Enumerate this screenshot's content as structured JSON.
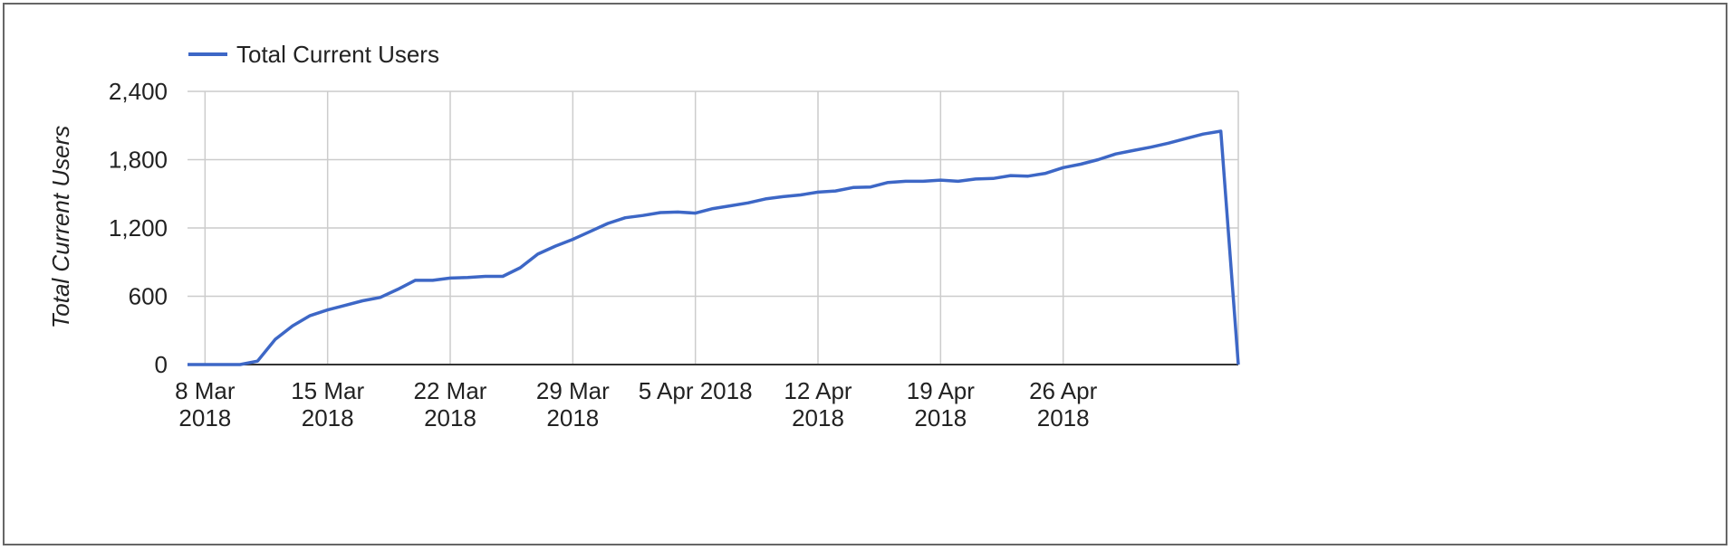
{
  "chart_data": {
    "type": "line",
    "title": "",
    "xlabel": "",
    "ylabel": "Total Current Users",
    "legend": {
      "position": "top-left",
      "entries": [
        "Total Current Users"
      ]
    },
    "grid": true,
    "ylim": [
      0,
      2400
    ],
    "yticks": [
      {
        "value": 0,
        "label": "0"
      },
      {
        "value": 600,
        "label": "600"
      },
      {
        "value": 1200,
        "label": "1,200"
      },
      {
        "value": 1800,
        "label": "1,800"
      },
      {
        "value": 2400,
        "label": "2,400"
      }
    ],
    "xlim": [
      "2018-03-08",
      "2018-05-06"
    ],
    "xticks": [
      {
        "value": "2018-03-08",
        "label": [
          "8 Mar",
          "2018"
        ]
      },
      {
        "value": "2018-03-15",
        "label": [
          "15 Mar",
          "2018"
        ]
      },
      {
        "value": "2018-03-22",
        "label": [
          "22 Mar",
          "2018"
        ]
      },
      {
        "value": "2018-03-29",
        "label": [
          "29 Mar",
          "2018"
        ]
      },
      {
        "value": "2018-04-05",
        "label": [
          "5 Apr 2018"
        ]
      },
      {
        "value": "2018-04-12",
        "label": [
          "12 Apr",
          "2018"
        ]
      },
      {
        "value": "2018-04-19",
        "label": [
          "19 Apr",
          "2018"
        ]
      },
      {
        "value": "2018-04-26",
        "label": [
          "26 Apr",
          "2018"
        ]
      }
    ],
    "series": [
      {
        "name": "Total Current Users",
        "color": "#3d67c6",
        "x": [
          "2018-03-07",
          "2018-03-08",
          "2018-03-09",
          "2018-03-10",
          "2018-03-11",
          "2018-03-12",
          "2018-03-13",
          "2018-03-14",
          "2018-03-15",
          "2018-03-16",
          "2018-03-17",
          "2018-03-18",
          "2018-03-19",
          "2018-03-20",
          "2018-03-21",
          "2018-03-22",
          "2018-03-23",
          "2018-03-24",
          "2018-03-25",
          "2018-03-26",
          "2018-03-27",
          "2018-03-28",
          "2018-03-29",
          "2018-03-30",
          "2018-03-31",
          "2018-04-01",
          "2018-04-02",
          "2018-04-03",
          "2018-04-04",
          "2018-04-05",
          "2018-04-06",
          "2018-04-07",
          "2018-04-08",
          "2018-04-09",
          "2018-04-10",
          "2018-04-11",
          "2018-04-12",
          "2018-04-13",
          "2018-04-14",
          "2018-04-15",
          "2018-04-16",
          "2018-04-17",
          "2018-04-18",
          "2018-04-19",
          "2018-04-20",
          "2018-04-21",
          "2018-04-22",
          "2018-04-23",
          "2018-04-24",
          "2018-04-25",
          "2018-04-26",
          "2018-04-27",
          "2018-04-28",
          "2018-04-29",
          "2018-04-30",
          "2018-05-01",
          "2018-05-02",
          "2018-05-03",
          "2018-05-04",
          "2018-05-05",
          "2018-05-06"
        ],
        "y": [
          0,
          0,
          0,
          0,
          30,
          220,
          340,
          430,
          480,
          520,
          560,
          590,
          660,
          740,
          740,
          760,
          765,
          775,
          775,
          850,
          970,
          1040,
          1100,
          1170,
          1240,
          1290,
          1310,
          1335,
          1340,
          1330,
          1370,
          1395,
          1420,
          1455,
          1475,
          1490,
          1515,
          1525,
          1555,
          1560,
          1600,
          1610,
          1610,
          1620,
          1610,
          1630,
          1635,
          1660,
          1655,
          1680,
          1730,
          1760,
          1800,
          1850,
          1880,
          1910,
          1945,
          1985,
          2025,
          2050,
          0
        ]
      }
    ]
  }
}
